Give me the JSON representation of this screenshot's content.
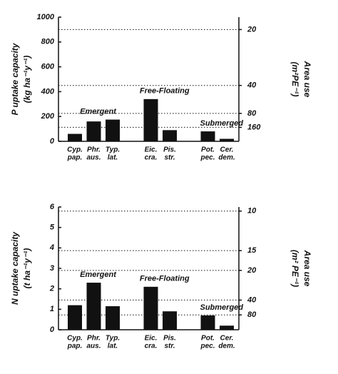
{
  "chart_data": [
    {
      "type": "bar",
      "ylabel": [
        "P uptake capacity",
        "(kg ha⁻¹y⁻¹)"
      ],
      "y2label": [
        "Area use",
        "(m²PE⁻¹)"
      ],
      "ylim": [
        0,
        1000
      ],
      "yticks": [
        0,
        200,
        400,
        600,
        800,
        1000
      ],
      "y2scale": {
        "type": "reciprocal",
        "factor": 18000
      },
      "y2ticks": [
        20,
        40,
        80,
        160
      ],
      "color": "#111111",
      "groups": [
        {
          "label": "Emergent",
          "categories": [
            [
              "Cyp.",
              "pap."
            ],
            [
              "Phr.",
              "aus."
            ],
            [
              "Typ.",
              "lat."
            ]
          ],
          "values": [
            60,
            160,
            175
          ]
        },
        {
          "label": "Free-Floating",
          "categories": [
            [
              "Eic.",
              "cra."
            ],
            [
              "Pis.",
              "str."
            ]
          ],
          "values": [
            340,
            90
          ]
        },
        {
          "label": "Submerged",
          "categories": [
            [
              "Pot.",
              "pec."
            ],
            [
              "Cer.",
              "dem."
            ]
          ],
          "values": [
            80,
            20
          ]
        }
      ]
    },
    {
      "type": "bar",
      "ylabel": [
        "N uptake capacity",
        "(t ha⁻¹y⁻¹)"
      ],
      "y2label": [
        "Area use",
        "(m² PE⁻¹)"
      ],
      "ylim": [
        0,
        6
      ],
      "yticks": [
        0,
        1,
        2,
        3,
        4,
        5,
        6
      ],
      "y2scale": {
        "type": "reciprocal",
        "factor": 58
      },
      "y2ticks": [
        10,
        15,
        20,
        40,
        80
      ],
      "color": "#111111",
      "groups": [
        {
          "label": "Emergent",
          "categories": [
            [
              "Cyp.",
              "pap."
            ],
            [
              "Phr.",
              "aus."
            ],
            [
              "Typ.",
              "lat."
            ]
          ],
          "values": [
            1.2,
            2.3,
            1.15
          ]
        },
        {
          "label": "Free-Floating",
          "categories": [
            [
              "Eic.",
              "cra."
            ],
            [
              "Pis.",
              "str."
            ]
          ],
          "values": [
            2.1,
            0.9
          ]
        },
        {
          "label": "Submerged",
          "categories": [
            [
              "Pot.",
              "pec."
            ],
            [
              "Cer.",
              "dem."
            ]
          ],
          "values": [
            0.7,
            0.2
          ]
        }
      ]
    }
  ]
}
